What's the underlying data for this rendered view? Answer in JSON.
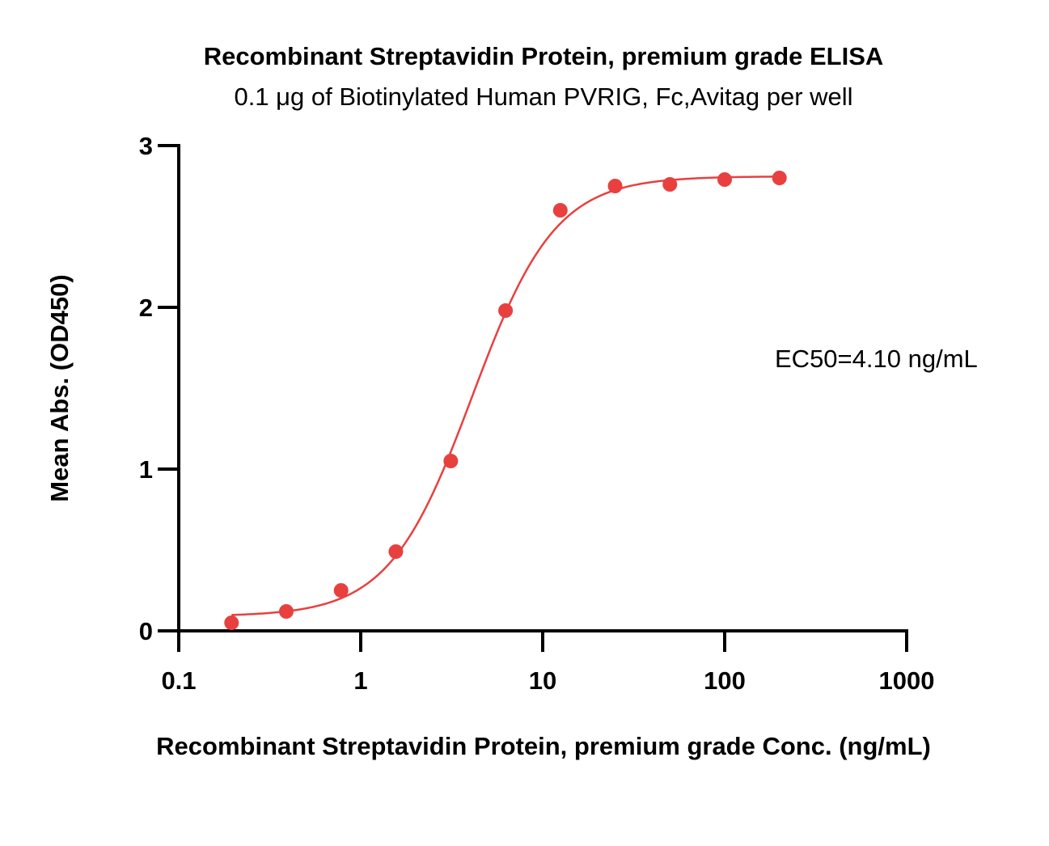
{
  "chart_data": {
    "type": "scatter",
    "title": "Recombinant Streptavidin Protein, premium grade ELISA",
    "subtitle": "0.1 μg of Biotinylated Human PVRIG, Fc,Avitag per well",
    "xlabel": "Recombinant Streptavidin Protein, premium grade Conc. (ng/mL)",
    "ylabel": "Mean Abs. (OD450)",
    "x_scale": "log",
    "xlim": [
      0.1,
      1000
    ],
    "ylim": [
      0,
      3
    ],
    "x_ticks": [
      0.1,
      1,
      10,
      100,
      1000
    ],
    "x_tick_labels": [
      "0.1",
      "1",
      "10",
      "100",
      "1000"
    ],
    "y_ticks": [
      0,
      1,
      2,
      3
    ],
    "y_tick_labels": [
      "0",
      "1",
      "2",
      "3"
    ],
    "grid": false,
    "color": "#e8403f",
    "series": [
      {
        "x": [
          0.195,
          0.39,
          0.78,
          1.56,
          3.125,
          6.25,
          12.5,
          25,
          50,
          100,
          200
        ],
        "y": [
          0.05,
          0.12,
          0.25,
          0.49,
          1.05,
          1.98,
          2.6,
          2.75,
          2.76,
          2.79,
          2.8
        ]
      }
    ],
    "fit": {
      "model": "4PL",
      "bottom": 0.09,
      "top": 2.81,
      "ec50": 4.1,
      "hill": 1.9
    },
    "annotation": "EC50=4.10 ng/mL"
  }
}
